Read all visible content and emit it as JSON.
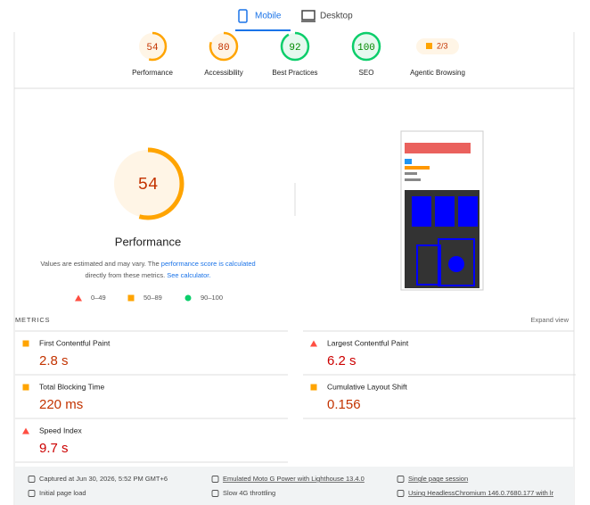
{
  "tabs": [
    {
      "label": "Mobile",
      "active": true
    },
    {
      "label": "Desktop",
      "active": false
    }
  ],
  "scores": [
    {
      "value": 54,
      "label": "Performance"
    },
    {
      "value": 80,
      "label": "Accessibility"
    },
    {
      "value": 92,
      "label": "Best Practices"
    },
    {
      "value": 100,
      "label": "SEO"
    }
  ],
  "agentic": {
    "value": "2/3",
    "label": "Agentic Browsing"
  },
  "main": {
    "score": 54,
    "title": "Performance",
    "note_start": "Values are estimated and may vary. The ",
    "link1": "performance score is calculated",
    "note_mid": "directly from these metrics. ",
    "link2": "See calculator.",
    "legend": [
      "0–49",
      "50–89",
      "90–100"
    ]
  },
  "metrics": {
    "heading": "METRICS",
    "expand": "Expand view",
    "items": [
      {
        "name": "First Contentful Paint",
        "value": "2.8 s",
        "status": "average"
      },
      {
        "name": "Largest Contentful Paint",
        "value": "6.2 s",
        "status": "fail"
      },
      {
        "name": "Total Blocking Time",
        "value": "220 ms",
        "status": "average"
      },
      {
        "name": "Cumulative Layout Shift",
        "value": "0.156",
        "status": "average"
      },
      {
        "name": "Speed Index",
        "value": "9.7 s",
        "status": "fail"
      }
    ]
  },
  "footer": [
    "Captured at Jun 30, 2026, 5:52 PM GMT+6",
    "Initial page load",
    "Emulated Moto G Power with Lighthouse 13.4.0",
    "Slow 4G throttling",
    "Single page session",
    "Using HeadlessChromium 146.0.7680.177 with lr"
  ]
}
